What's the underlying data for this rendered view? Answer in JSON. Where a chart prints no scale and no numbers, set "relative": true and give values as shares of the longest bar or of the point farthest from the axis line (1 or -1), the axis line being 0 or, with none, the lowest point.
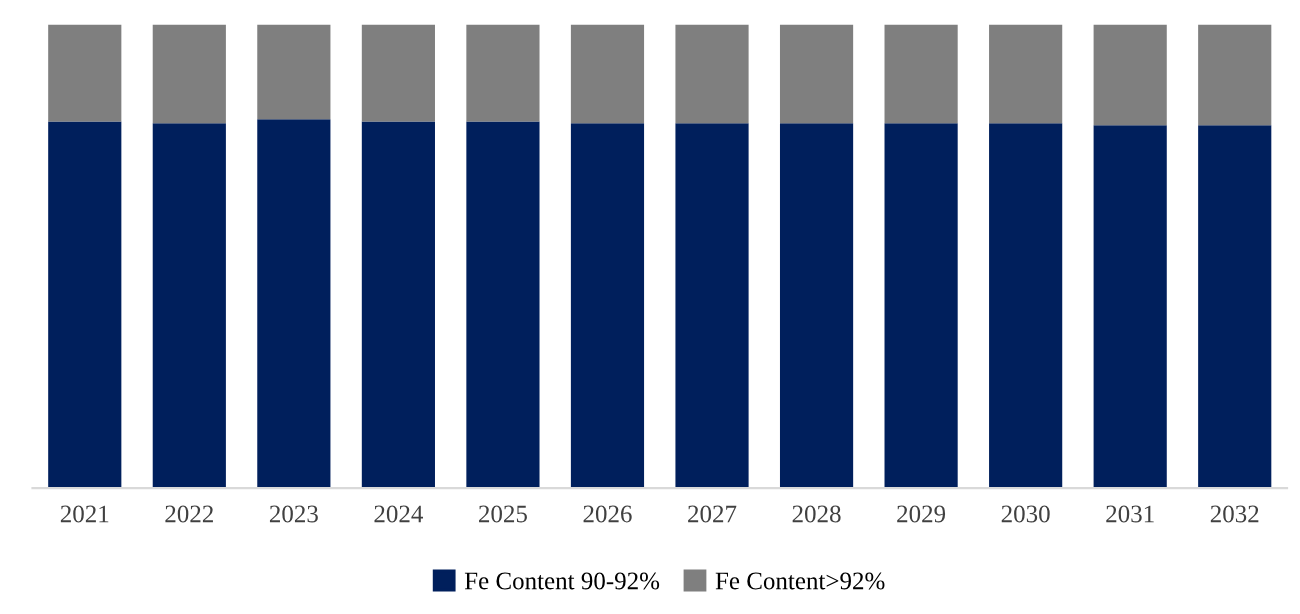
{
  "chart_data": {
    "type": "bar",
    "stacked": true,
    "relative": true,
    "legend": "bottom",
    "grid": false,
    "categories": [
      "2021",
      "2022",
      "2023",
      "2024",
      "2025",
      "2026",
      "2027",
      "2028",
      "2029",
      "2030",
      "2031",
      "2032"
    ],
    "series": [
      {
        "name": "Fe Content 90-92%",
        "color": "#001f5c",
        "values": [
          0.791,
          0.787,
          0.796,
          0.791,
          0.791,
          0.787,
          0.787,
          0.787,
          0.787,
          0.787,
          0.783,
          0.783
        ]
      },
      {
        "name": "Fe Content>92%",
        "color": "#7f7f7f",
        "values": [
          0.209,
          0.213,
          0.204,
          0.209,
          0.209,
          0.213,
          0.213,
          0.213,
          0.213,
          0.213,
          0.217,
          0.217
        ]
      }
    ]
  }
}
